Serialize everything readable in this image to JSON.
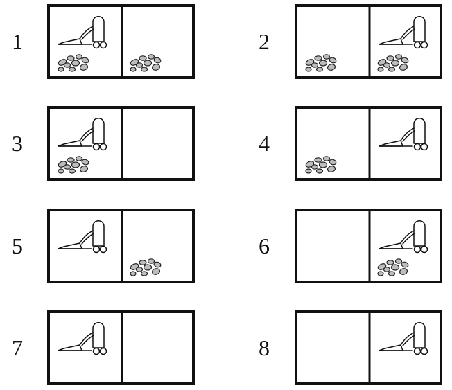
{
  "states": [
    {
      "label": "1",
      "vacuum": "left",
      "dirt": {
        "left": true,
        "right": true
      }
    },
    {
      "label": "2",
      "vacuum": "right",
      "dirt": {
        "left": true,
        "right": true
      }
    },
    {
      "label": "3",
      "vacuum": "left",
      "dirt": {
        "left": true,
        "right": false
      }
    },
    {
      "label": "4",
      "vacuum": "right",
      "dirt": {
        "left": true,
        "right": false
      }
    },
    {
      "label": "5",
      "vacuum": "left",
      "dirt": {
        "left": false,
        "right": true
      }
    },
    {
      "label": "6",
      "vacuum": "right",
      "dirt": {
        "left": false,
        "right": true
      }
    },
    {
      "label": "7",
      "vacuum": "left",
      "dirt": {
        "left": false,
        "right": false
      }
    },
    {
      "label": "8",
      "vacuum": "right",
      "dirt": {
        "left": false,
        "right": false
      }
    }
  ],
  "icons": {
    "vacuum": "vacuum-cleaner-icon",
    "dirt": "dirt-pile-icon"
  },
  "colors": {
    "stroke": "#111111",
    "dirt_fill": "#bdbdbd",
    "background": "#ffffff"
  }
}
